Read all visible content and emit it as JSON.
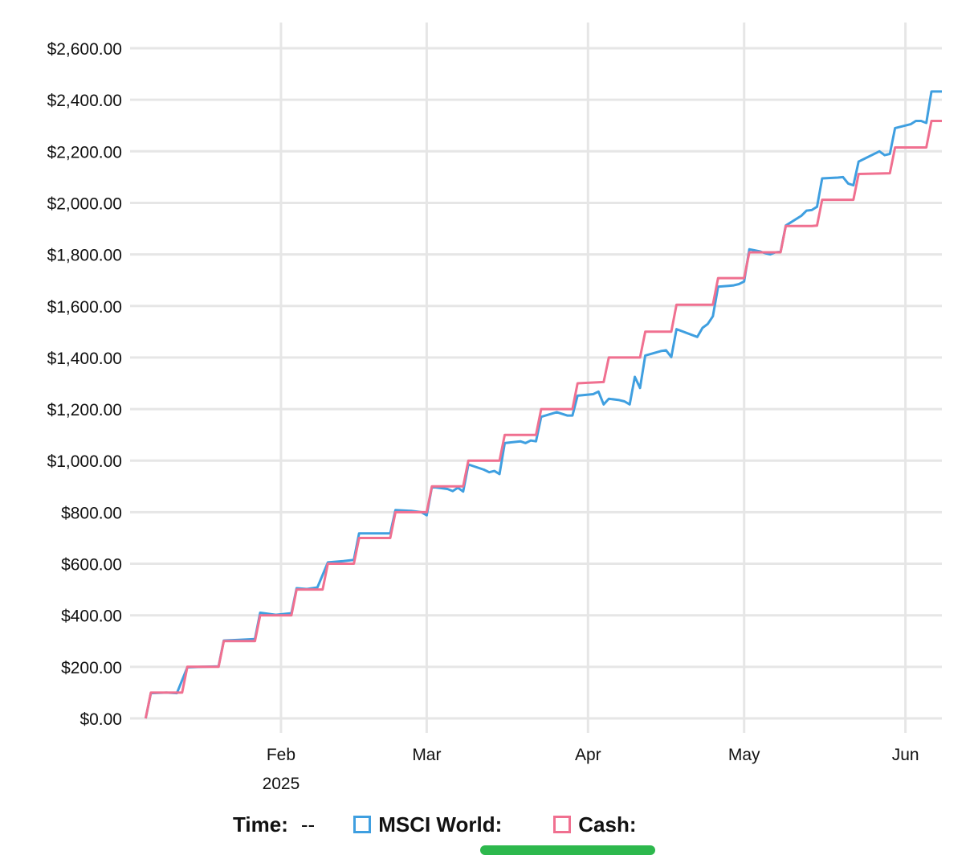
{
  "chart_data": {
    "type": "line",
    "y_ticks": [
      "$0.00",
      "$200.00",
      "$400.00",
      "$600.00",
      "$800.00",
      "$1,000.00",
      "$1,200.00",
      "$1,400.00",
      "$1,600.00",
      "$1,800.00",
      "$2,000.00",
      "$2,200.00",
      "$2,400.00",
      "$2,600.00"
    ],
    "ylim": [
      0,
      2600
    ],
    "x_ticks": [
      {
        "label": "Feb",
        "sub": "2025",
        "date": "2025-02-01"
      },
      {
        "label": "Mar",
        "sub": "",
        "date": "2025-03-01"
      },
      {
        "label": "Apr",
        "sub": "",
        "date": "2025-04-01"
      },
      {
        "label": "May",
        "sub": "",
        "date": "2025-05-01"
      },
      {
        "label": "Jun",
        "sub": "",
        "date": "2025-06-01"
      }
    ],
    "xlim": [
      "2025-01-03",
      "2025-06-08"
    ],
    "grid": true,
    "series": [
      {
        "name": "MSCI World",
        "color": "#3f9fe0",
        "points": [
          [
            "2025-01-06",
            0
          ],
          [
            "2025-01-07",
            98
          ],
          [
            "2025-01-10",
            100
          ],
          [
            "2025-01-12",
            98
          ],
          [
            "2025-01-14",
            198
          ],
          [
            "2025-01-17",
            200
          ],
          [
            "2025-01-20",
            202
          ],
          [
            "2025-01-21",
            302
          ],
          [
            "2025-01-24",
            305
          ],
          [
            "2025-01-27",
            308
          ],
          [
            "2025-01-28",
            410
          ],
          [
            "2025-01-31",
            402
          ],
          [
            "2025-02-03",
            408
          ],
          [
            "2025-02-04",
            505
          ],
          [
            "2025-02-06",
            502
          ],
          [
            "2025-02-08",
            508
          ],
          [
            "2025-02-10",
            605
          ],
          [
            "2025-02-13",
            610
          ],
          [
            "2025-02-15",
            615
          ],
          [
            "2025-02-16",
            718
          ],
          [
            "2025-02-19",
            718
          ],
          [
            "2025-02-22",
            718
          ],
          [
            "2025-02-23",
            808
          ],
          [
            "2025-02-26",
            805
          ],
          [
            "2025-02-28",
            800
          ],
          [
            "2025-03-01",
            788
          ],
          [
            "2025-03-02",
            898
          ],
          [
            "2025-03-05",
            890
          ],
          [
            "2025-03-06",
            882
          ],
          [
            "2025-03-07",
            895
          ],
          [
            "2025-03-08",
            880
          ],
          [
            "2025-03-09",
            985
          ],
          [
            "2025-03-12",
            965
          ],
          [
            "2025-03-13",
            955
          ],
          [
            "2025-03-14",
            960
          ],
          [
            "2025-03-15",
            948
          ],
          [
            "2025-03-16",
            1068
          ],
          [
            "2025-03-19",
            1075
          ],
          [
            "2025-03-20",
            1068
          ],
          [
            "2025-03-21",
            1078
          ],
          [
            "2025-03-22",
            1075
          ],
          [
            "2025-03-23",
            1170
          ],
          [
            "2025-03-26",
            1188
          ],
          [
            "2025-03-28",
            1175
          ],
          [
            "2025-03-29",
            1175
          ],
          [
            "2025-03-30",
            1252
          ],
          [
            "2025-04-02",
            1258
          ],
          [
            "2025-04-03",
            1268
          ],
          [
            "2025-04-04",
            1218
          ],
          [
            "2025-04-05",
            1240
          ],
          [
            "2025-04-07",
            1235
          ],
          [
            "2025-04-08",
            1230
          ],
          [
            "2025-04-09",
            1218
          ],
          [
            "2025-04-10",
            1325
          ],
          [
            "2025-04-11",
            1282
          ],
          [
            "2025-04-12",
            1408
          ],
          [
            "2025-04-15",
            1425
          ],
          [
            "2025-04-16",
            1428
          ],
          [
            "2025-04-17",
            1402
          ],
          [
            "2025-04-18",
            1510
          ],
          [
            "2025-04-22",
            1480
          ],
          [
            "2025-04-23",
            1515
          ],
          [
            "2025-04-24",
            1530
          ],
          [
            "2025-04-25",
            1560
          ],
          [
            "2025-04-26",
            1675
          ],
          [
            "2025-04-28",
            1678
          ],
          [
            "2025-04-29",
            1680
          ],
          [
            "2025-04-30",
            1685
          ],
          [
            "2025-05-01",
            1695
          ],
          [
            "2025-05-02",
            1820
          ],
          [
            "2025-05-04",
            1812
          ],
          [
            "2025-05-05",
            1805
          ],
          [
            "2025-05-06",
            1800
          ],
          [
            "2025-05-07",
            1808
          ],
          [
            "2025-05-08",
            1810
          ],
          [
            "2025-05-09",
            1912
          ],
          [
            "2025-05-12",
            1950
          ],
          [
            "2025-05-13",
            1970
          ],
          [
            "2025-05-14",
            1972
          ],
          [
            "2025-05-15",
            1985
          ],
          [
            "2025-05-16",
            2095
          ],
          [
            "2025-05-19",
            2098
          ],
          [
            "2025-05-20",
            2100
          ],
          [
            "2025-05-21",
            2075
          ],
          [
            "2025-05-22",
            2068
          ],
          [
            "2025-05-23",
            2160
          ],
          [
            "2025-05-27",
            2200
          ],
          [
            "2025-05-28",
            2185
          ],
          [
            "2025-05-29",
            2190
          ],
          [
            "2025-05-30",
            2290
          ],
          [
            "2025-06-02",
            2305
          ],
          [
            "2025-06-03",
            2318
          ],
          [
            "2025-06-04",
            2318
          ],
          [
            "2025-06-05",
            2310
          ],
          [
            "2025-06-06",
            2432
          ],
          [
            "2025-06-08",
            2432
          ]
        ]
      },
      {
        "name": "Cash",
        "color": "#f07090",
        "steps": [
          [
            "2025-01-06",
            0
          ],
          [
            "2025-01-07",
            100
          ],
          [
            "2025-01-13",
            100
          ],
          [
            "2025-01-14",
            200
          ],
          [
            "2025-01-20",
            200
          ],
          [
            "2025-01-21",
            300
          ],
          [
            "2025-01-27",
            300
          ],
          [
            "2025-01-28",
            400
          ],
          [
            "2025-02-03",
            400
          ],
          [
            "2025-02-04",
            500
          ],
          [
            "2025-02-09",
            500
          ],
          [
            "2025-02-10",
            600
          ],
          [
            "2025-02-15",
            600
          ],
          [
            "2025-02-16",
            700
          ],
          [
            "2025-02-22",
            700
          ],
          [
            "2025-02-23",
            800
          ],
          [
            "2025-03-01",
            800
          ],
          [
            "2025-03-02",
            900
          ],
          [
            "2025-03-08",
            900
          ],
          [
            "2025-03-09",
            1000
          ],
          [
            "2025-03-15",
            1000
          ],
          [
            "2025-03-16",
            1100
          ],
          [
            "2025-03-22",
            1100
          ],
          [
            "2025-03-23",
            1200
          ],
          [
            "2025-03-29",
            1200
          ],
          [
            "2025-03-30",
            1300
          ],
          [
            "2025-04-04",
            1305
          ],
          [
            "2025-04-05",
            1400
          ],
          [
            "2025-04-11",
            1400
          ],
          [
            "2025-04-12",
            1500
          ],
          [
            "2025-04-17",
            1500
          ],
          [
            "2025-04-18",
            1605
          ],
          [
            "2025-04-25",
            1605
          ],
          [
            "2025-04-26",
            1708
          ],
          [
            "2025-05-01",
            1708
          ],
          [
            "2025-05-02",
            1808
          ],
          [
            "2025-05-08",
            1808
          ],
          [
            "2025-05-09",
            1910
          ],
          [
            "2025-05-14",
            1910
          ],
          [
            "2025-05-15",
            1912
          ],
          [
            "2025-05-16",
            2012
          ],
          [
            "2025-05-22",
            2012
          ],
          [
            "2025-05-23",
            2112
          ],
          [
            "2025-05-29",
            2115
          ],
          [
            "2025-05-30",
            2215
          ],
          [
            "2025-06-05",
            2215
          ],
          [
            "2025-06-06",
            2318
          ],
          [
            "2025-06-08",
            2318
          ]
        ]
      }
    ]
  },
  "legend": {
    "time_label": "Time:",
    "time_value": "--",
    "msci_label": "MSCI World:",
    "cash_label": "Cash:",
    "msci_color": "#3f9fe0",
    "cash_color": "#f07090"
  }
}
